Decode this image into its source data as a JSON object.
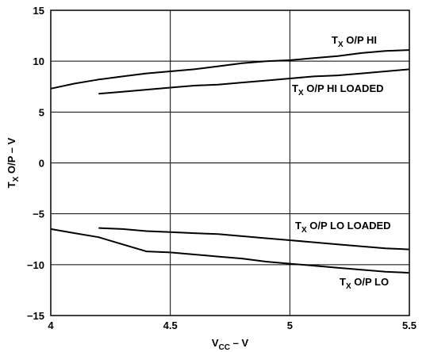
{
  "chart_data": {
    "type": "line",
    "xlim": [
      4,
      5.5
    ],
    "ylim": [
      -15,
      15
    ],
    "x_ticks": [
      4,
      4.5,
      5,
      5.5
    ],
    "y_ticks": [
      15,
      10,
      5,
      0,
      -5,
      -10,
      -15
    ],
    "x_tick_labels": [
      "4",
      "4.5",
      "5",
      "5.5"
    ],
    "y_tick_labels": [
      "15",
      "10",
      "5",
      "0",
      "−5",
      "−10",
      "−15"
    ],
    "xlabel": {
      "main": "V",
      "sub": "CC",
      "suffix": " – V"
    },
    "ylabel": {
      "main": "T",
      "sub": "X",
      "suffix": " O/P – V"
    },
    "grid": true,
    "series": [
      {
        "name": "TX O/P HI",
        "label": {
          "main": "T",
          "sub": "X",
          "suffix": " O/P HI"
        },
        "x": [
          4.0,
          4.1,
          4.2,
          4.3,
          4.4,
          4.5,
          4.6,
          4.7,
          4.8,
          4.9,
          5.0,
          5.1,
          5.2,
          5.3,
          5.4,
          5.5
        ],
        "y": [
          7.3,
          7.8,
          8.2,
          8.5,
          8.8,
          9.0,
          9.2,
          9.5,
          9.8,
          10.0,
          10.1,
          10.3,
          10.5,
          10.8,
          11.0,
          11.1
        ]
      },
      {
        "name": "TX O/P HI LOADED",
        "label": {
          "main": "T",
          "sub": "X",
          "suffix": " O/P HI LOADED"
        },
        "x": [
          4.2,
          4.3,
          4.4,
          4.5,
          4.6,
          4.7,
          4.8,
          4.9,
          5.0,
          5.1,
          5.2,
          5.3,
          5.4,
          5.5
        ],
        "y": [
          6.8,
          7.0,
          7.2,
          7.4,
          7.6,
          7.7,
          7.9,
          8.1,
          8.3,
          8.5,
          8.6,
          8.8,
          9.0,
          9.2
        ]
      },
      {
        "name": "TX O/P LO LOADED",
        "label": {
          "main": "T",
          "sub": "X",
          "suffix": " O/P LO LOADED"
        },
        "x": [
          4.2,
          4.3,
          4.4,
          4.5,
          4.6,
          4.7,
          4.8,
          4.9,
          5.0,
          5.1,
          5.2,
          5.3,
          5.4,
          5.5
        ],
        "y": [
          -6.4,
          -6.5,
          -6.7,
          -6.8,
          -6.9,
          -7.0,
          -7.2,
          -7.4,
          -7.6,
          -7.8,
          -8.0,
          -8.2,
          -8.4,
          -8.5
        ]
      },
      {
        "name": "TX O/P LO",
        "label": {
          "main": "T",
          "sub": "X",
          "suffix": " O/P LO"
        },
        "x": [
          4.0,
          4.1,
          4.2,
          4.3,
          4.4,
          4.5,
          4.6,
          4.7,
          4.8,
          4.9,
          5.0,
          5.1,
          5.2,
          5.3,
          5.4,
          5.5
        ],
        "y": [
          -6.5,
          -6.9,
          -7.3,
          -8.0,
          -8.7,
          -8.8,
          -9.0,
          -9.2,
          -9.4,
          -9.7,
          -9.9,
          -10.1,
          -10.3,
          -10.5,
          -10.7,
          -10.8
        ]
      }
    ]
  }
}
